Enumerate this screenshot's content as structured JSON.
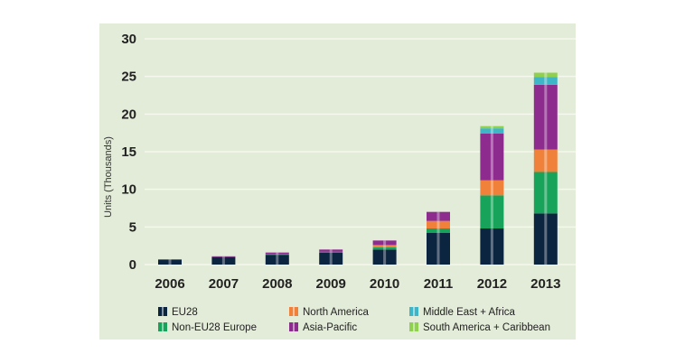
{
  "colors": {
    "panel_bg": "#e3ecd8",
    "grid": "#f4f8ee",
    "eu28": "#0b2440",
    "non_eu28_europe": "#18a35a",
    "north_america": "#f0813a",
    "asia_pacific": "#8e2b8f",
    "middle_east_africa": "#3fb6c8",
    "south_america_caribbean": "#8fd14f"
  },
  "chart_data": {
    "type": "bar",
    "stacked": true,
    "title": "",
    "xlabel": "",
    "ylabel": "Units (Thousands)",
    "ylim": [
      0,
      30
    ],
    "yticks": [
      0,
      5,
      10,
      15,
      20,
      25,
      30
    ],
    "grid": true,
    "legend_position": "bottom",
    "categories": [
      "2006",
      "2007",
      "2008",
      "2009",
      "2010",
      "2011",
      "2012",
      "2013"
    ],
    "series": [
      {
        "name": "EU28",
        "color": "#0b2440",
        "values": [
          0.6,
          1.0,
          1.3,
          1.6,
          2.0,
          4.2,
          4.8,
          6.8
        ]
      },
      {
        "name": "Non-EU28 Europe",
        "color": "#18a35a",
        "values": [
          0.0,
          0.0,
          0.1,
          0.1,
          0.3,
          0.6,
          4.4,
          5.5
        ]
      },
      {
        "name": "North America",
        "color": "#f0813a",
        "values": [
          0.0,
          0.0,
          0.0,
          0.0,
          0.3,
          1.0,
          2.0,
          3.0
        ]
      },
      {
        "name": "Asia-Pacific",
        "color": "#8e2b8f",
        "values": [
          0.1,
          0.1,
          0.2,
          0.3,
          0.6,
          1.2,
          6.2,
          8.6
        ]
      },
      {
        "name": "Middle East + Africa",
        "color": "#3fb6c8",
        "values": [
          0.0,
          0.0,
          0.0,
          0.0,
          0.0,
          0.0,
          0.7,
          1.0
        ]
      },
      {
        "name": "South America + Caribbean",
        "color": "#8fd14f",
        "values": [
          0.0,
          0.0,
          0.0,
          0.0,
          0.0,
          0.0,
          0.3,
          0.6
        ]
      }
    ],
    "legend_order": [
      "EU28",
      "North America",
      "Middle East + Africa",
      "Non-EU28 Europe",
      "Asia-Pacific",
      "South America + Caribbean"
    ]
  }
}
